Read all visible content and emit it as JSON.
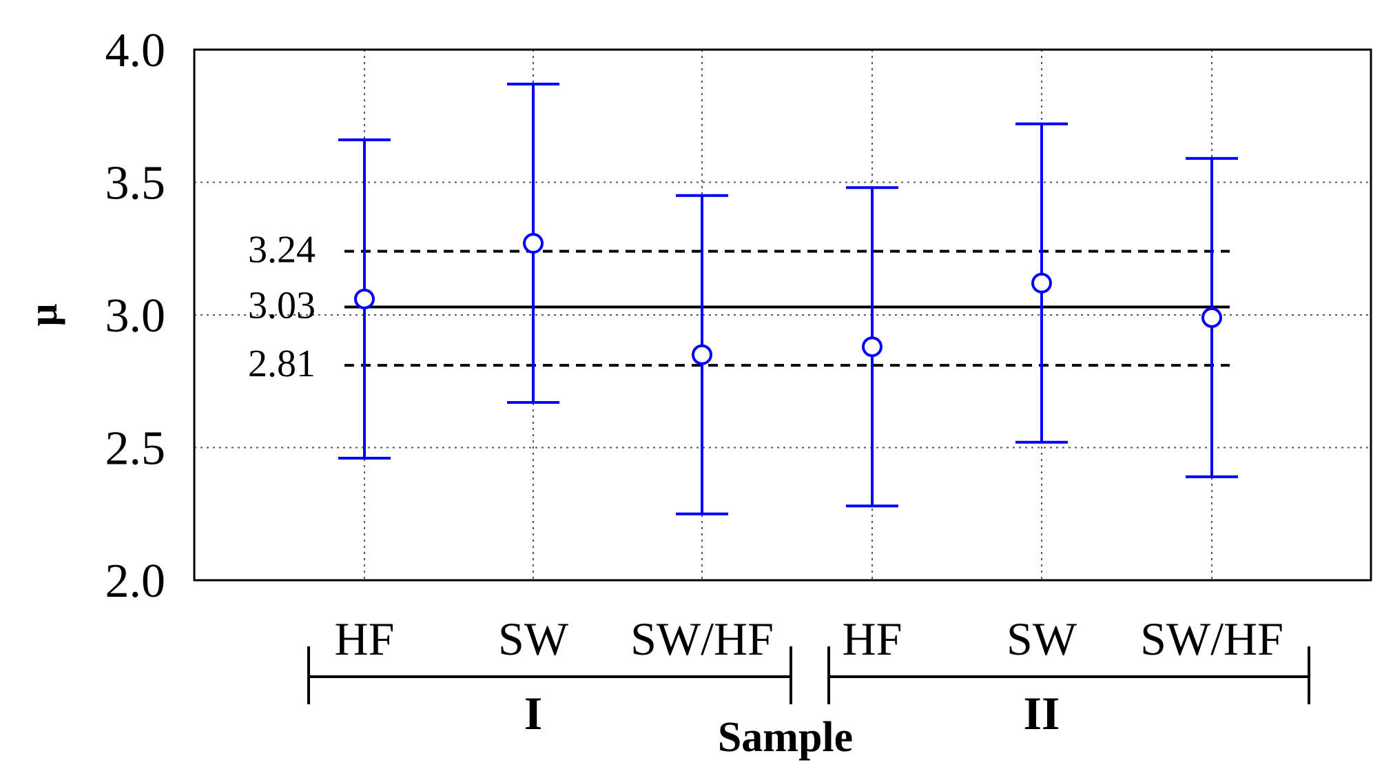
{
  "chart_data": {
    "type": "scatter",
    "ylabel": "μ",
    "xlabel": "Sample",
    "ylim": [
      2.0,
      4.0
    ],
    "yticks": [
      "2.0",
      "2.5",
      "3.0",
      "3.5",
      "4.0"
    ],
    "grid": true,
    "categories": [
      "HF",
      "SW",
      "SW/HF",
      "HF",
      "SW",
      "SW/HF"
    ],
    "groups": [
      {
        "label": "I",
        "members": [
          0,
          1,
          2
        ]
      },
      {
        "label": "II",
        "members": [
          3,
          4,
          5
        ]
      }
    ],
    "points": [
      {
        "category": "HF",
        "group": "I",
        "mean": 3.06,
        "lower": 2.46,
        "upper": 3.66
      },
      {
        "category": "SW",
        "group": "I",
        "mean": 3.27,
        "lower": 2.67,
        "upper": 3.87
      },
      {
        "category": "SW/HF",
        "group": "I",
        "mean": 2.85,
        "lower": 2.25,
        "upper": 3.45
      },
      {
        "category": "HF",
        "group": "II",
        "mean": 2.88,
        "lower": 2.28,
        "upper": 3.48
      },
      {
        "category": "SW",
        "group": "II",
        "mean": 3.12,
        "lower": 2.52,
        "upper": 3.72
      },
      {
        "category": "SW/HF",
        "group": "II",
        "mean": 2.99,
        "lower": 2.39,
        "upper": 3.59
      }
    ],
    "reference_lines": [
      {
        "value": 3.24,
        "label": "3.24",
        "style": "dashed"
      },
      {
        "value": 3.03,
        "label": "3.03",
        "style": "solid"
      },
      {
        "value": 2.81,
        "label": "2.81",
        "style": "dashed"
      }
    ],
    "colors": {
      "series": "#0000ff",
      "reference": "#000000",
      "grid": "#555555"
    }
  }
}
